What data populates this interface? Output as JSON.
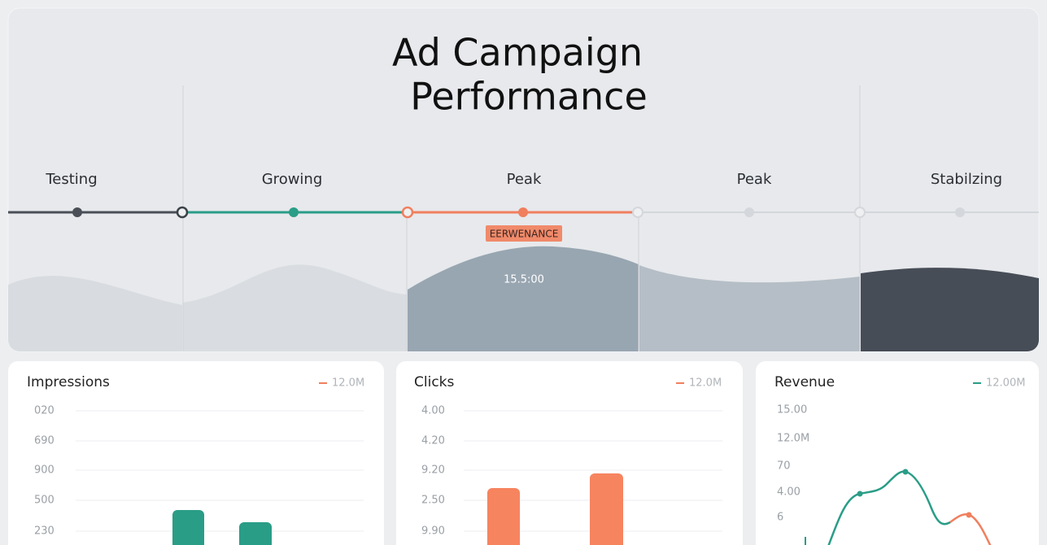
{
  "header": {
    "title_lines": [
      "Ad Campaign",
      "Performance"
    ]
  },
  "timeline": {
    "stages": [
      "Testing",
      "Growing",
      "Peak",
      "Peak",
      "Stabilzing"
    ],
    "badge": "EERWENANCE",
    "value": "15.5:00"
  },
  "cards": [
    {
      "title": "Impressions",
      "legend": "12.0M",
      "ticks": [
        "020",
        "690",
        "900",
        "500",
        "230"
      ]
    },
    {
      "title": "Clicks",
      "legend": "12.0M",
      "ticks": [
        "4.00",
        "4.20",
        "9.20",
        "2.50",
        "9.90"
      ]
    },
    {
      "title": "Revenue",
      "legend": "12.00M",
      "ticks": [
        "15.00",
        "12.0M",
        "70",
        "4.00",
        "6"
      ]
    }
  ]
}
